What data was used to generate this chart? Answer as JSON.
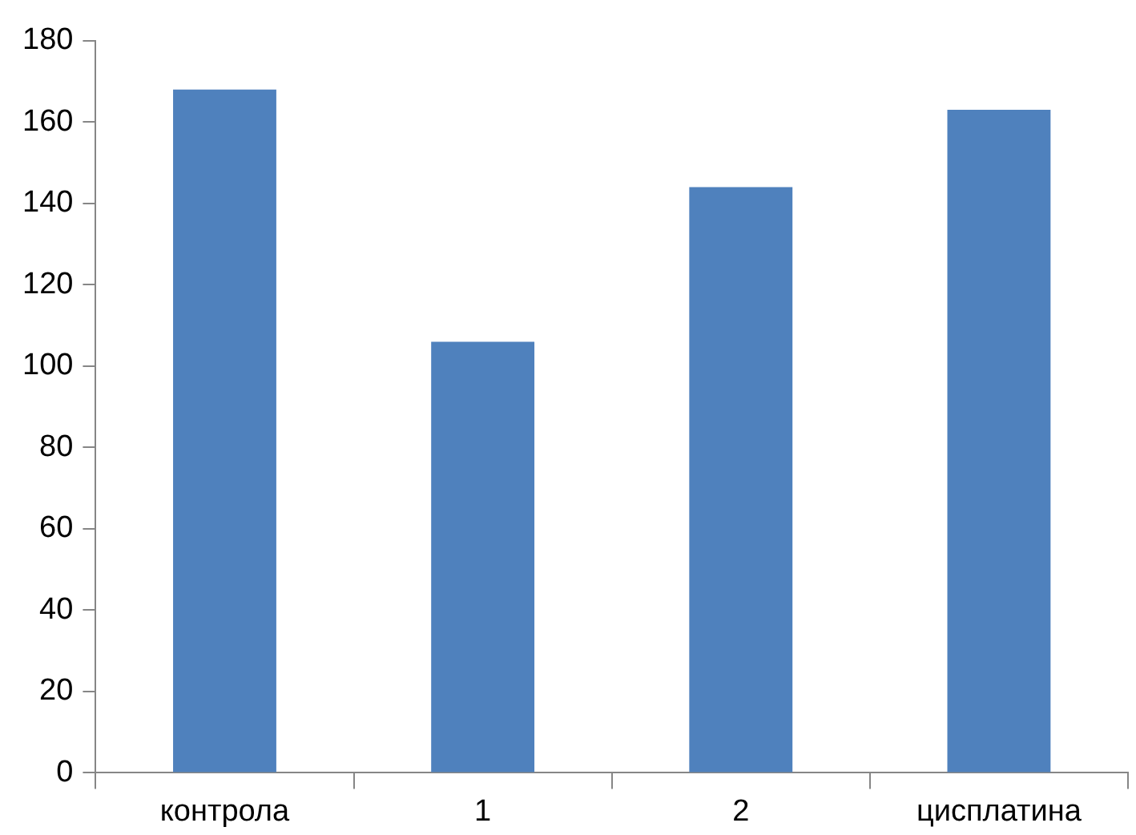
{
  "chart_data": {
    "type": "bar",
    "categories": [
      "контрола",
      "1",
      "2",
      "цисплатина"
    ],
    "values": [
      168,
      106,
      144,
      163
    ],
    "color": "#4f81bd",
    "ylim": [
      0,
      180
    ],
    "yticks": [
      0,
      20,
      40,
      60,
      80,
      100,
      120,
      140,
      160,
      180
    ],
    "grid": false,
    "legend": false
  }
}
